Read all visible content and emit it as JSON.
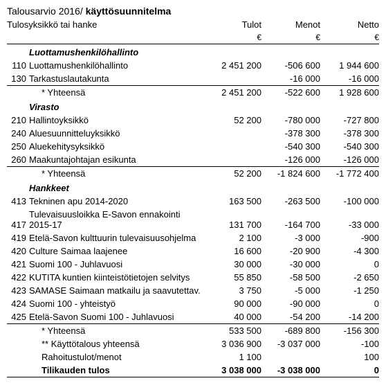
{
  "title_prefix": "Talousarvio 2016/ ",
  "title_bold": "käyttösuunnitelma",
  "headers": {
    "unit_or_project": "Tulosyksikkö tai hanke",
    "income": "Tulot",
    "expense": "Menot",
    "net": "Netto",
    "currency": "€"
  },
  "sections": [
    {
      "title": "Luottamushenkilöhallinto",
      "rows": [
        {
          "code": "110",
          "label": "Luottamushenkilöhallinto",
          "income": "2 451 200",
          "expense": "-506 600",
          "net": "1 944 600"
        },
        {
          "code": "130",
          "label": "Tarkastuslautakunta",
          "income": "",
          "expense": "-16 000",
          "net": "-16 000"
        }
      ],
      "subtotal": {
        "label": "* Yhteensä",
        "income": "2 451 200",
        "expense": "-522 600",
        "net": "1 928 600"
      }
    },
    {
      "title": "Virasto",
      "rows": [
        {
          "code": "210",
          "label": "Hallintoyksikkö",
          "income": "52 200",
          "expense": "-780 000",
          "net": "-727 800"
        },
        {
          "code": "240",
          "label": "Aluesuunnitteluyksikkö",
          "income": "",
          "expense": "-378 300",
          "net": "-378 300"
        },
        {
          "code": "250",
          "label": "Aluekehitysyksikkö",
          "income": "",
          "expense": "-540 300",
          "net": "-540 300"
        },
        {
          "code": "260",
          "label": "Maakuntajohtajan esikunta",
          "income": "",
          "expense": "-126 000",
          "net": "-126 000"
        }
      ],
      "subtotal": {
        "label": "* Yhteensä",
        "income": "52 200",
        "expense": "-1 824 600",
        "net": "-1 772 400"
      }
    },
    {
      "title": "Hankkeet",
      "rows": [
        {
          "code": "413",
          "label": "Tekninen apu 2014-2020",
          "income": "163 500",
          "expense": "-263 500",
          "net": "-100 000"
        },
        {
          "code": "417",
          "label": "Tulevaisuusloikka E-Savon ennakointi 2015-17",
          "income": "131 700",
          "expense": "-164 700",
          "net": "-33 000"
        },
        {
          "code": "419",
          "label": "Etelä-Savon kulttuurin tulevaisuusohjelma",
          "income": "2 100",
          "expense": "-3 000",
          "net": "-900"
        },
        {
          "code": "420",
          "label": "Culture Saimaa laajenee",
          "income": "16 600",
          "expense": "-20 900",
          "net": "-4 300"
        },
        {
          "code": "421",
          "label": "Suomi 100 - Juhlavuosi",
          "income": "30 000",
          "expense": "-30 000",
          "net": "0"
        },
        {
          "code": "422",
          "label": "KUTITA kuntien kiinteistötietojen selvitys",
          "income": "55 850",
          "expense": "-58 500",
          "net": "-2 650"
        },
        {
          "code": "423",
          "label": "SAMASE Saimaan matkailu ja saavutettav.",
          "income": "3 750",
          "expense": "-5 000",
          "net": "-1 250"
        },
        {
          "code": "424",
          "label": "Suomi 100 - yhteistyö",
          "income": "90 000",
          "expense": "-90 000",
          "net": "0"
        },
        {
          "code": "425",
          "label": "Etelä-Savon Suomi 100 - Juhlavuosi",
          "income": "40 000",
          "expense": "-54 200",
          "net": "-14 200"
        }
      ],
      "subtotal": {
        "label": "* Yhteensä",
        "income": "533 500",
        "expense": "-689 800",
        "net": "-156 300"
      }
    }
  ],
  "footer": [
    {
      "label": "** Käyttötalous yhteensä",
      "income": "3 036 900",
      "expense": "-3 037 000",
      "net": "-100",
      "bold": false
    },
    {
      "label": "Rahoitustulot/menot",
      "income": "1 100",
      "expense": "",
      "net": "100",
      "bold": false
    },
    {
      "label": "Tilikauden tulos",
      "income": "3 038 000",
      "expense": "-3 038 000",
      "net": "0",
      "bold": true
    }
  ]
}
